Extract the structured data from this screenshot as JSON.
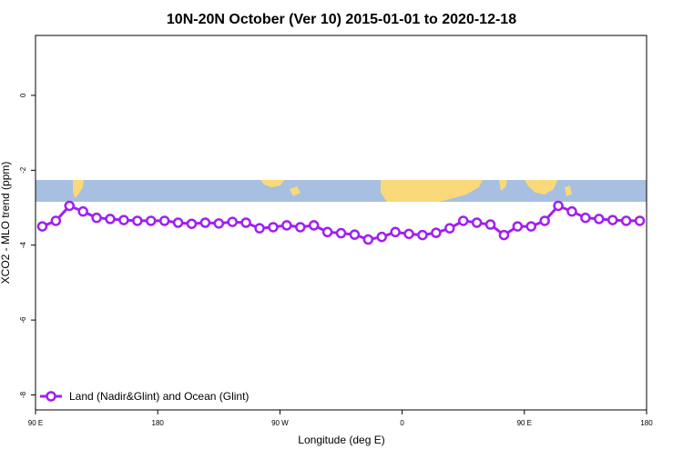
{
  "chart_data": {
    "type": "line",
    "title": "10N-20N October (Ver 10)   2015-01-01 to 2020-12-18",
    "xlabel": "Longitude (deg E)",
    "ylabel": "XCO2 - MLO trend (ppm)",
    "x_ticks": [
      {
        "value": 90,
        "label": "90 E"
      },
      {
        "value": 180,
        "label": "180"
      },
      {
        "value": 270,
        "label": "90 W"
      },
      {
        "value": 360,
        "label": "0"
      },
      {
        "value": 450,
        "label": "90 E"
      },
      {
        "value": 540,
        "label": "180"
      }
    ],
    "y_ticks": [
      0,
      -2,
      -4,
      -6,
      -8
    ],
    "xlim": [
      90,
      540
    ],
    "ylim": [
      -8.4,
      1.6
    ],
    "grid": false,
    "legend_position": "bottom-left",
    "map_band": {
      "colors": {
        "ocean": "#a7bfe0",
        "land": "#fad97a"
      }
    },
    "series": [
      {
        "name": "Land (Nadir&Glint) and Ocean (Glint)",
        "color": "#a020f0",
        "x": [
          95,
          105,
          115,
          125,
          135,
          145,
          155,
          165,
          175,
          185,
          195,
          205,
          215,
          225,
          235,
          245,
          255,
          265,
          275,
          285,
          295,
          305,
          315,
          325,
          335,
          345,
          355,
          365,
          375,
          385,
          395,
          405,
          415,
          425,
          435,
          445,
          455,
          465,
          475,
          485,
          495,
          505,
          515,
          525,
          535
        ],
        "y": [
          -3.5,
          -3.35,
          -2.95,
          -3.1,
          -3.27,
          -3.3,
          -3.33,
          -3.35,
          -3.35,
          -3.35,
          -3.4,
          -3.43,
          -3.4,
          -3.42,
          -3.38,
          -3.4,
          -3.55,
          -3.52,
          -3.47,
          -3.52,
          -3.47,
          -3.65,
          -3.68,
          -3.72,
          -3.85,
          -3.78,
          -3.65,
          -3.7,
          -3.73,
          -3.67,
          -3.55,
          -3.35,
          -3.4,
          -3.45,
          -3.73,
          -3.5,
          -3.5,
          -3.35,
          -2.95,
          -3.1,
          -3.27,
          -3.3,
          -3.33,
          -3.35,
          -3.35
        ]
      }
    ]
  }
}
